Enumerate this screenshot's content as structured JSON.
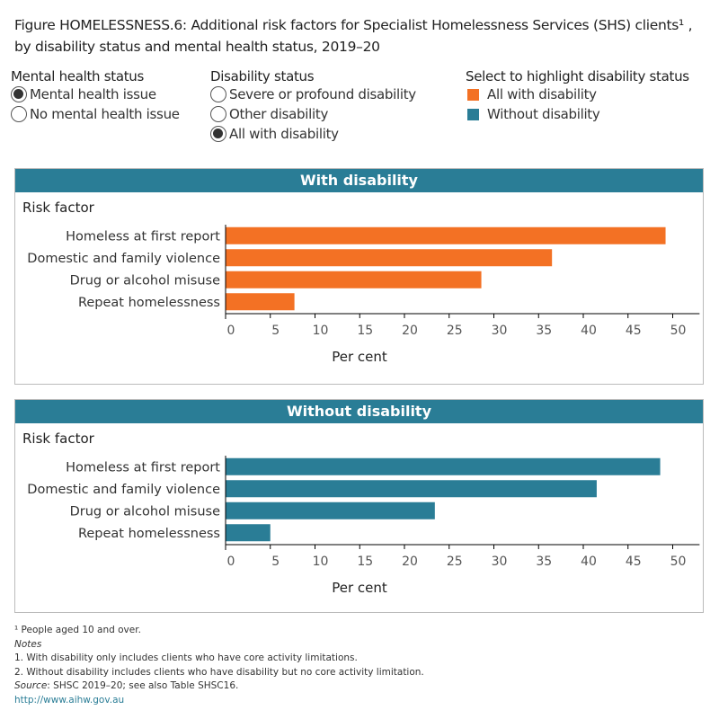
{
  "title_line1": "Figure HOMELESSNESS.6: Additional risk factors for Specialist Homelessness Services (SHS) clients¹ ,",
  "title_line2": "by disability status and mental health status, 2019–20",
  "controls": {
    "mental_health": {
      "heading": "Mental health status",
      "options": [
        {
          "label": "Mental health issue",
          "selected": true
        },
        {
          "label": "No mental health issue",
          "selected": false
        }
      ]
    },
    "disability": {
      "heading": "Disability status",
      "options": [
        {
          "label": "Severe or profound disability",
          "selected": false
        },
        {
          "label": "Other disability",
          "selected": false
        },
        {
          "label": "All with disability",
          "selected": true
        }
      ]
    },
    "highlight": {
      "heading": "Select to highlight disability status",
      "items": [
        {
          "label": "All with disability",
          "color": "#f37124"
        },
        {
          "label": "Without disability",
          "color": "#2a7d96"
        }
      ]
    }
  },
  "chart_data": [
    {
      "type": "bar",
      "orientation": "horizontal",
      "title": "With disability",
      "ylabel": "Risk factor",
      "xlabel": "Per cent",
      "xlim": [
        0,
        53
      ],
      "xticks": [
        0,
        5,
        10,
        15,
        20,
        25,
        30,
        35,
        40,
        45,
        50
      ],
      "color": "#f37124",
      "categories": [
        "Homeless at first report",
        "Domestic and family violence",
        "Drug or alcohol misuse",
        "Repeat homelessness"
      ],
      "values": [
        49.2,
        36.5,
        28.6,
        7.7
      ]
    },
    {
      "type": "bar",
      "orientation": "horizontal",
      "title": "Without disability",
      "ylabel": "Risk factor",
      "xlabel": "Per cent",
      "xlim": [
        0,
        53
      ],
      "xticks": [
        0,
        5,
        10,
        15,
        20,
        25,
        30,
        35,
        40,
        45,
        50
      ],
      "color": "#2a7d96",
      "categories": [
        "Homeless at first report",
        "Domestic and family violence",
        "Drug or alcohol misuse",
        "Repeat homelessness"
      ],
      "values": [
        48.6,
        41.5,
        23.4,
        5.0
      ]
    }
  ],
  "footer": {
    "footnote": "¹ People aged 10 and over.",
    "notes_label": "Notes",
    "note1": "1. With disability only includes clients who have core activity limitations.",
    "note2": "2. Without disability includes clients who have disability but no core activity limitation.",
    "source_label": "Source",
    "source_text": ": SHSC 2019–20; see also Table SHSC16.",
    "link": "http://www.aihw.gov.au"
  }
}
